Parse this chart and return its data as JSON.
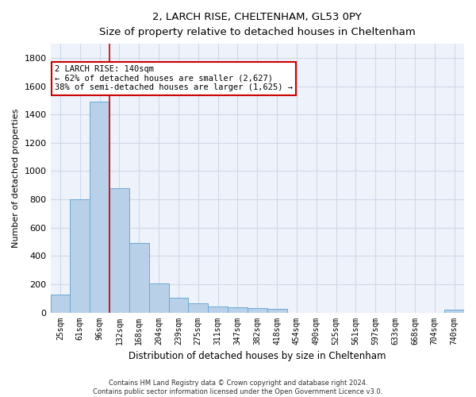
{
  "title": "2, LARCH RISE, CHELTENHAM, GL53 0PY",
  "subtitle": "Size of property relative to detached houses in Cheltenham",
  "xlabel": "Distribution of detached houses by size in Cheltenham",
  "ylabel": "Number of detached properties",
  "bar_color": "#b8d0e8",
  "bar_edge_color": "#6aaad4",
  "categories": [
    "25sqm",
    "61sqm",
    "96sqm",
    "132sqm",
    "168sqm",
    "204sqm",
    "239sqm",
    "275sqm",
    "311sqm",
    "347sqm",
    "382sqm",
    "418sqm",
    "454sqm",
    "490sqm",
    "525sqm",
    "561sqm",
    "597sqm",
    "633sqm",
    "668sqm",
    "704sqm",
    "740sqm"
  ],
  "values": [
    125,
    800,
    1490,
    880,
    490,
    205,
    105,
    65,
    40,
    35,
    30,
    25,
    0,
    0,
    0,
    0,
    0,
    0,
    0,
    0,
    18
  ],
  "ylim": [
    0,
    1900
  ],
  "yticks": [
    0,
    200,
    400,
    600,
    800,
    1000,
    1200,
    1400,
    1600,
    1800
  ],
  "vline_x": 2.5,
  "annotation_text": "2 LARCH RISE: 140sqm\n← 62% of detached houses are smaller (2,627)\n38% of semi-detached houses are larger (1,625) →",
  "annotation_box_color": "#ffffff",
  "annotation_border_color": "#cc0000",
  "grid_color": "#d0d8e8",
  "vline_color": "#cc0000",
  "footer_line1": "Contains HM Land Registry data © Crown copyright and database right 2024.",
  "footer_line2": "Contains public sector information licensed under the Open Government Licence v3.0.",
  "background_color": "#eef2fa",
  "figsize": [
    6.0,
    5.0
  ],
  "dpi": 100
}
